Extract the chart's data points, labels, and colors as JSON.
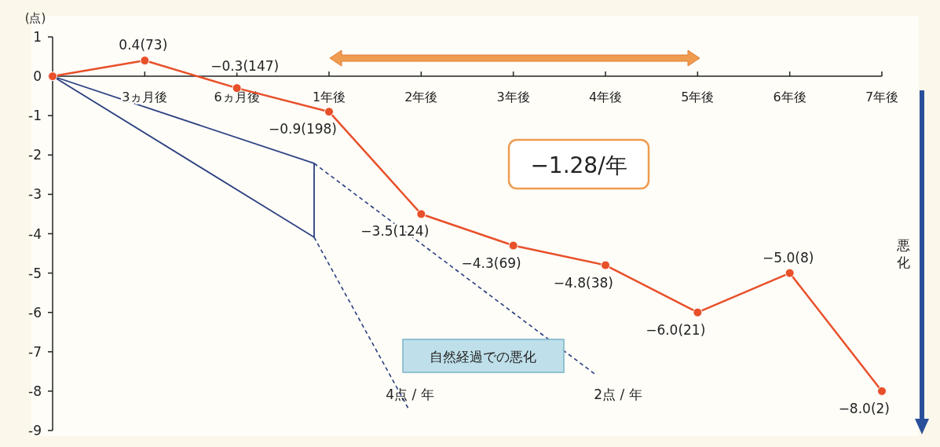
{
  "chart_data": {
    "type": "line",
    "ylabel": "(点)",
    "categories": [
      null,
      "3ヵ月後",
      "6ヵ月後",
      "1年後",
      "2年後",
      "3年後",
      "4年後",
      "5年後",
      "6年後",
      "7年後"
    ],
    "values": [
      0,
      0.4,
      -0.3,
      -0.9,
      -3.5,
      -4.3,
      -4.8,
      -6.0,
      -5.0,
      -8.0
    ],
    "value_labels": [
      null,
      "0.4(73)",
      "−0.3(147)",
      "−0.9(198)",
      "−3.5(124)",
      "−4.3(69)",
      "−4.8(38)",
      "−6.0(21)",
      "−5.0(8)",
      "−8.0(2)"
    ],
    "color": "#e8502a",
    "marker": "circle",
    "ylim": [
      -9,
      1
    ],
    "yticks": [
      -9,
      -8,
      -7,
      -6,
      -5,
      -4,
      -3,
      -2,
      -1,
      0,
      1
    ],
    "annotations": [
      "−1.28/年",
      "自然経過での悪化",
      "4点 / 年",
      "2点 / 年",
      "悪化"
    ]
  }
}
